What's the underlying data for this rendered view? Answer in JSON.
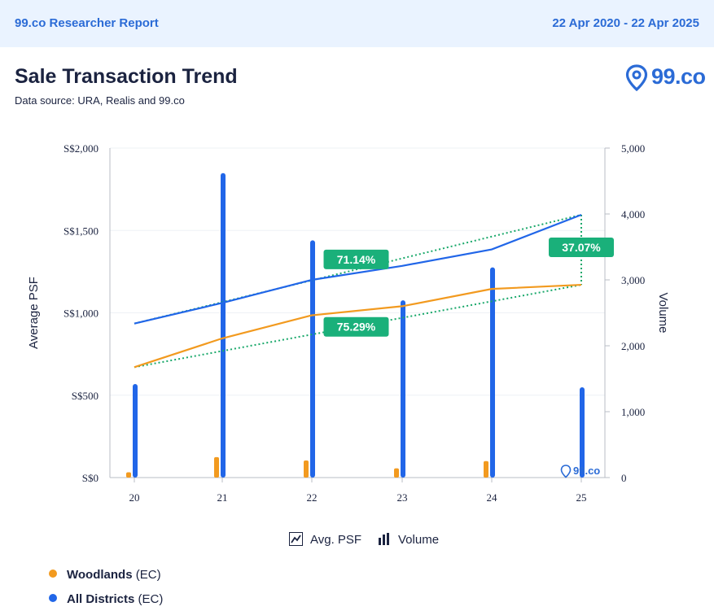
{
  "header": {
    "brand": "99.co Researcher Report",
    "date_range": "22 Apr 2020 - 22 Apr 2025"
  },
  "title": "Sale Transaction Trend",
  "source": "Data source: URA, Realis and 99.co",
  "logo": {
    "text": "99.co",
    "icon": "location-pin-icon"
  },
  "watermark": "99.co",
  "colors": {
    "woodlands": "#f29a1f",
    "all_districts": "#2166e8",
    "trend": "#19a86a",
    "badge": "#1ab07a"
  },
  "legend": {
    "line_label": "Avg. PSF",
    "bar_label": "Volume"
  },
  "series_legend": [
    {
      "name": "Woodlands",
      "type": "(EC)",
      "color": "#f29a1f"
    },
    {
      "name": "All Districts",
      "type": "(EC)",
      "color": "#2166e8"
    }
  ],
  "chart_data": {
    "type": "bar",
    "categories": [
      "20",
      "21",
      "22",
      "23",
      "24",
      "25"
    ],
    "ylabel": "Average PSF",
    "y2label": "Volume",
    "ylim": [
      0,
      2000
    ],
    "y2lim": [
      0,
      5000
    ],
    "yticks": [
      "S$0",
      "S$500",
      "S$1,000",
      "S$1,500",
      "S$2,000"
    ],
    "y2ticks": [
      "0",
      "1,000",
      "2,000",
      "3,000",
      "4,000",
      "5,000"
    ],
    "grid": true,
    "series": [
      {
        "name": "Woodlands",
        "kind": "bar",
        "axis": "right",
        "values": [
          80,
          310,
          260,
          140,
          250,
          0
        ]
      },
      {
        "name": "All Districts",
        "kind": "bar",
        "axis": "right",
        "values": [
          1420,
          4620,
          3600,
          2690,
          3190,
          1370
        ]
      },
      {
        "name": "Woodlands",
        "kind": "line",
        "axis": "left",
        "values": [
          670,
          845,
          985,
          1040,
          1145,
          1170
        ]
      },
      {
        "name": "All Districts",
        "kind": "line",
        "axis": "left",
        "values": [
          935,
          1060,
          1200,
          1285,
          1385,
          1595
        ]
      }
    ],
    "annotations": [
      {
        "text": "71.14%",
        "series": "All Districts"
      },
      {
        "text": "75.29%",
        "series": "Woodlands"
      },
      {
        "text": "37.07%",
        "series": "difference"
      }
    ]
  }
}
